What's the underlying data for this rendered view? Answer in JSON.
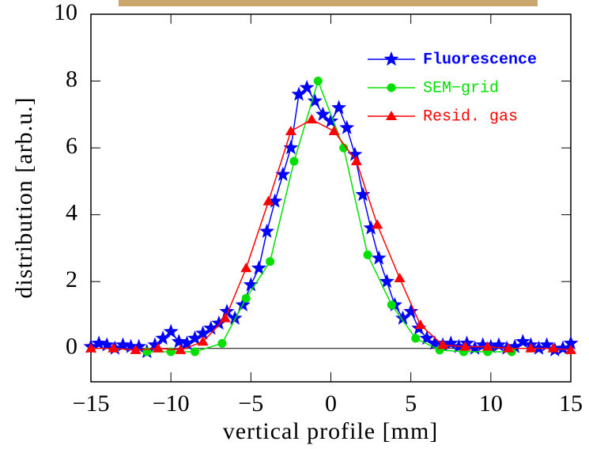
{
  "chart_data": {
    "type": "line",
    "xlabel": "vertical profile [mm]",
    "ylabel": "distribution [arb.u.]",
    "xlim": [
      -15,
      15
    ],
    "ylim": [
      -1,
      10
    ],
    "xticks": [
      {
        "value": -15,
        "label": "−15"
      },
      {
        "value": -10,
        "label": "−10"
      },
      {
        "value": -5,
        "label": "−5"
      },
      0,
      5,
      10,
      15
    ],
    "yticks": [
      0,
      2,
      4,
      6,
      8,
      10
    ],
    "zero_line": true,
    "legend": "top-right",
    "series": [
      {
        "name": "Fluorescence",
        "color": "#0000ff",
        "marker": "star",
        "bold": true,
        "x": [
          -15,
          -14.5,
          -14,
          -13.5,
          -13,
          -12.5,
          -12,
          -11.5,
          -11,
          -10.5,
          -10,
          -9.5,
          -9,
          -8.5,
          -8,
          -7.5,
          -7,
          -6.5,
          -6,
          -5.5,
          -5,
          -4.5,
          -4,
          -3.5,
          -3,
          -2.5,
          -2,
          -1.5,
          -1,
          -0.5,
          0,
          0.5,
          1,
          1.5,
          2,
          2.5,
          3,
          3.5,
          4,
          4.5,
          5,
          5.5,
          6,
          6.5,
          7,
          7.5,
          8,
          8.5,
          9,
          9.5,
          10,
          10.5,
          11,
          11.5,
          12,
          12.5,
          13,
          13.5,
          14,
          14.5,
          15
        ],
        "values": [
          0.05,
          0.15,
          0.1,
          0.0,
          0.1,
          0.05,
          0.05,
          -0.1,
          0.1,
          0.3,
          0.5,
          0.2,
          0.15,
          0.3,
          0.45,
          0.6,
          0.75,
          1.1,
          0.9,
          1.3,
          1.9,
          2.4,
          3.5,
          4.4,
          5.2,
          6.0,
          7.6,
          7.8,
          7.4,
          7.0,
          6.8,
          7.2,
          6.6,
          5.8,
          4.6,
          3.6,
          2.7,
          2.0,
          1.3,
          0.9,
          1.1,
          0.6,
          0.3,
          0.15,
          0.1,
          0.15,
          0.05,
          0.15,
          0.0,
          0.1,
          0.05,
          0.1,
          0.0,
          0.05,
          0.2,
          0.1,
          0.0,
          0.1,
          -0.05,
          0.0,
          0.15
        ]
      },
      {
        "name": "SEM−grid",
        "color": "#00e000",
        "marker": "circle",
        "bold": false,
        "x": [
          -11.5,
          -10,
          -8.5,
          -6.8,
          -5.3,
          -3.8,
          -2.3,
          -0.8,
          0.8,
          2.3,
          3.8,
          5.3,
          6.8,
          8.3,
          9.8,
          11.3
        ],
        "values": [
          -0.1,
          -0.1,
          -0.1,
          0.15,
          1.5,
          2.6,
          5.6,
          8.0,
          6.0,
          2.8,
          1.3,
          0.3,
          -0.05,
          -0.1,
          -0.1,
          -0.1
        ]
      },
      {
        "name": "Resid. gas",
        "color": "#ff0000",
        "marker": "triangle",
        "bold": false,
        "x": [
          -15,
          -13.6,
          -12.2,
          -10.8,
          -9.4,
          -8,
          -6.6,
          -5.3,
          -3.9,
          -2.5,
          -1.2,
          0.2,
          1.6,
          2.9,
          4.3,
          5.6,
          7,
          8.4,
          9.8,
          11.1,
          12.5,
          13.9,
          15
        ],
        "values": [
          0,
          0,
          -0.05,
          0,
          -0.05,
          0.2,
          0.9,
          2.4,
          4.4,
          6.5,
          6.85,
          6.5,
          5.6,
          3.7,
          2.1,
          0.7,
          0.1,
          0.05,
          0.05,
          0,
          0,
          0,
          -0.05
        ]
      }
    ]
  }
}
